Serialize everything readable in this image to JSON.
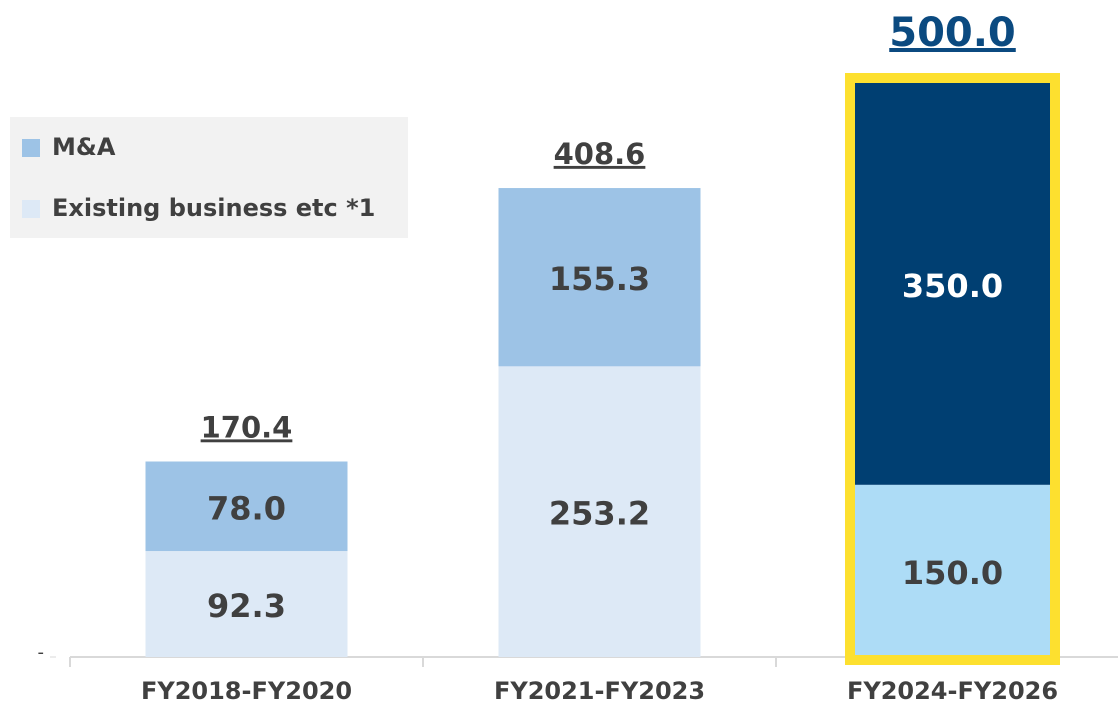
{
  "chart_data": {
    "type": "stacked_bar",
    "categories": [
      "FY2018-FY2020",
      "FY2021-FY2023",
      "FY2024-FY2026"
    ],
    "series": [
      {
        "name": "Existing business etc *1",
        "color": "#dde9f6",
        "colors": [
          "#dde9f6",
          "#dde9f6",
          "#addcf6"
        ],
        "values": [
          92.3,
          253.2,
          150.0
        ],
        "value_labels": [
          "92.3",
          "253.2",
          "150.0"
        ]
      },
      {
        "name": "M&A",
        "color": "#9dc3e6",
        "colors": [
          "#9dc3e6",
          "#9dc3e6",
          "#003f72"
        ],
        "values": [
          78.0,
          155.3,
          350.0
        ],
        "value_labels": [
          "78.0",
          "155.3",
          "350.0"
        ]
      }
    ],
    "totals": [
      170.4,
      408.6,
      500.0
    ],
    "total_labels": [
      "170.4",
      "408.6",
      "500.0"
    ],
    "highlight": {
      "category": 2,
      "color": "#fde02f",
      "label_color": "#0b4a80"
    },
    "ylim": [
      0,
      500
    ],
    "yticks": [
      {
        "value": 0,
        "label": "-"
      }
    ],
    "legend": "upper left"
  }
}
